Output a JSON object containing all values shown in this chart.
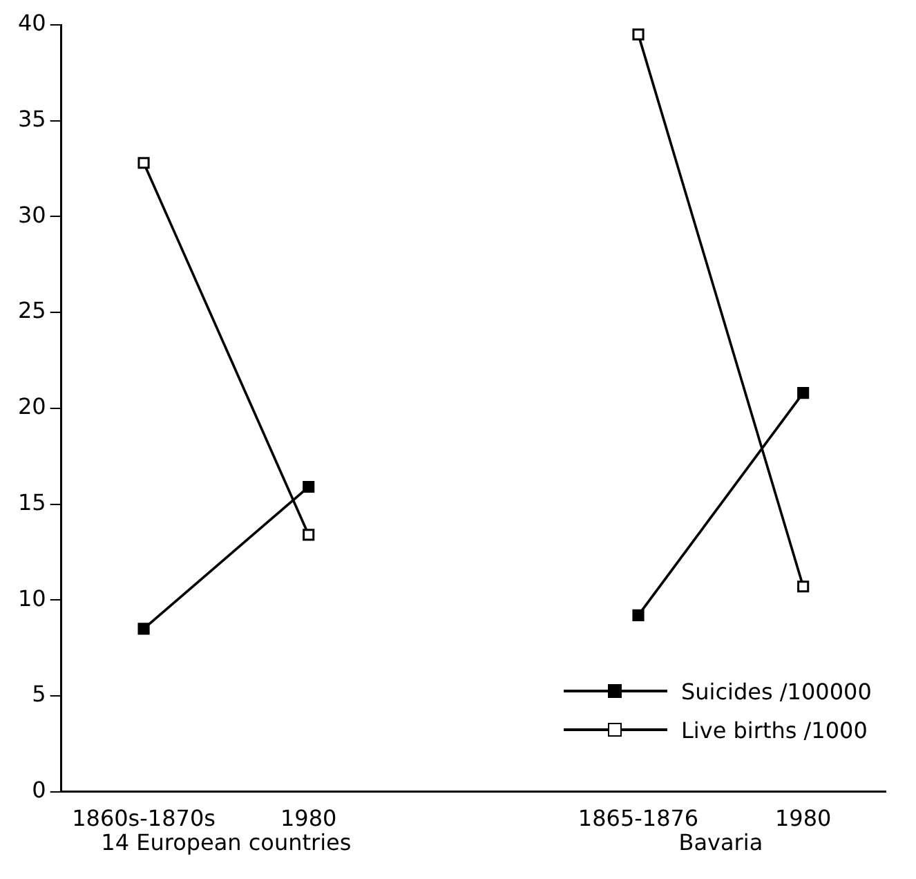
{
  "chart_data": {
    "type": "line",
    "categories": [
      "1860s-1870s",
      "1980",
      null,
      "1865-1876",
      "1980"
    ],
    "series": [
      {
        "name": "Suicides /100000",
        "color": "#000000",
        "values": [
          8.5,
          15.9,
          null,
          9.2,
          20.8
        ]
      },
      {
        "name": "Live births /1000",
        "color": "#000000",
        "values": [
          32.8,
          13.4,
          null,
          39.5,
          10.7
        ]
      }
    ],
    "ylim": [
      0,
      40
    ],
    "yticks": [
      0,
      5,
      10,
      15,
      20,
      25,
      30,
      35,
      40
    ],
    "grid": false,
    "legend": "bottom right",
    "marker": "square",
    "line_style": "solid",
    "annotations": [
      "14 European countries",
      "Bavaria"
    ]
  }
}
